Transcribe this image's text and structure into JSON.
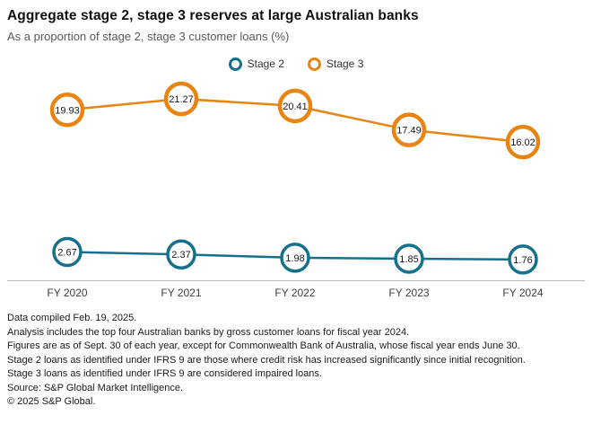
{
  "header": {
    "title": "Aggregate stage 2, stage 3 reserves at large Australian banks",
    "subtitle": "As a proportion of stage 2, stage 3 customer loans (%)"
  },
  "legend": {
    "items": [
      {
        "label": "Stage 2",
        "color": "#16708c"
      },
      {
        "label": "Stage 3",
        "color": "#e88412"
      }
    ]
  },
  "chart_data": {
    "type": "line",
    "categories": [
      "FY 2020",
      "FY 2021",
      "FY 2022",
      "FY 2023",
      "FY 2024"
    ],
    "series": [
      {
        "name": "Stage 2",
        "color": "#16708c",
        "values": [
          2.67,
          2.37,
          1.98,
          1.85,
          1.76
        ]
      },
      {
        "name": "Stage 3",
        "color": "#e88412",
        "values": [
          19.93,
          21.27,
          20.41,
          17.49,
          16.02
        ]
      }
    ],
    "title": "Aggregate stage 2, stage 3 reserves at large Australian banks",
    "xlabel": "",
    "ylabel": "Proportion of stage 2, stage 3 customer loans (%)",
    "ylim": [
      0,
      24
    ],
    "grid": false,
    "legend_position": "top-center",
    "marker_style": "open-circle-with-value-label"
  },
  "footnotes": [
    "Data compiled Feb. 19, 2025.",
    "Analysis includes the top four Australian banks by gross customer loans for fiscal year 2024.",
    "Figures are as of Sept. 30 of each year, except for Commonwealth Bank of Australia, whose fiscal year ends June 30.",
    "Stage 2 loans as identified under IFRS 9 are those where credit risk has increased significantly since initial recognition.",
    "Stage 3 loans as identified under IFRS 9 are considered impaired loans.",
    "Source: S&P Global Market Intelligence.",
    "© 2025 S&P Global."
  ]
}
